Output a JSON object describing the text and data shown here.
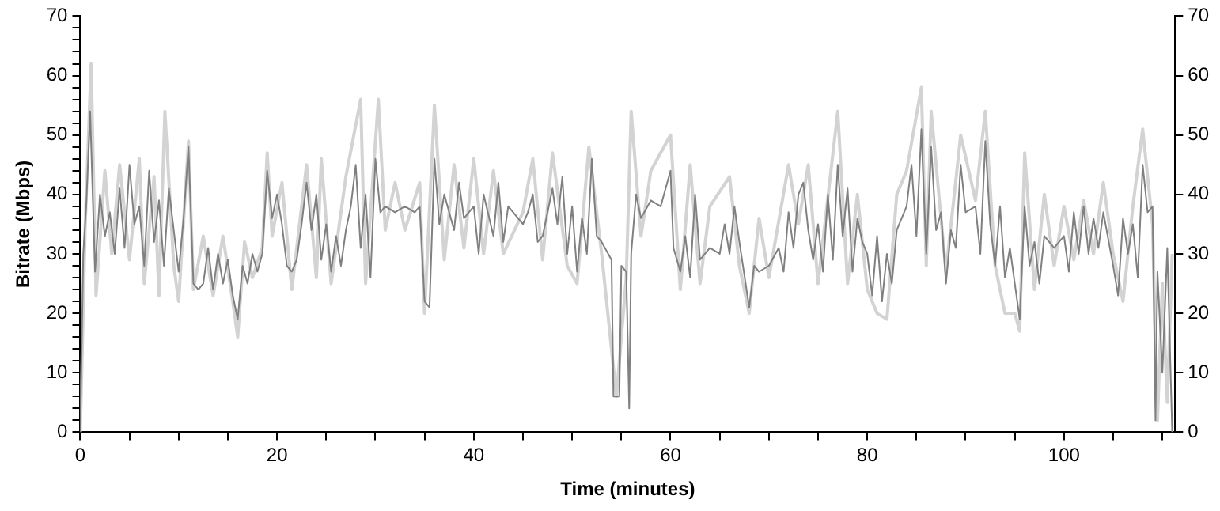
{
  "chart_data": {
    "type": "line",
    "xlabel": "Time (minutes)",
    "ylabel": "Bitrate (Mbps)",
    "xlim": [
      0,
      111.3
    ],
    "xticks": [
      0,
      {
        "value": 5,
        "label": null
      },
      {
        "value": 10,
        "label": null
      },
      {
        "value": 15,
        "label": null
      },
      20,
      {
        "value": 25,
        "label": null
      },
      {
        "value": 30,
        "label": null
      },
      {
        "value": 35,
        "label": null
      },
      40,
      {
        "value": 45,
        "label": null
      },
      {
        "value": 50,
        "label": null
      },
      {
        "value": 55,
        "label": null
      },
      60,
      {
        "value": 65,
        "label": null
      },
      {
        "value": 70,
        "label": null
      },
      {
        "value": 75,
        "label": null
      },
      80,
      {
        "value": 85,
        "label": null
      },
      {
        "value": 90,
        "label": null
      },
      {
        "value": 95,
        "label": null
      },
      100,
      {
        "value": 105,
        "label": null
      },
      {
        "value": 110,
        "label": null
      }
    ],
    "ylim": [
      0,
      70
    ],
    "yticks": [
      0,
      {
        "value": 2,
        "label": null
      },
      {
        "value": 4,
        "label": null
      },
      {
        "value": 6,
        "label": null
      },
      {
        "value": 8,
        "label": null
      },
      10,
      {
        "value": 12,
        "label": null
      },
      {
        "value": 14,
        "label": null
      },
      {
        "value": 16,
        "label": null
      },
      {
        "value": 18,
        "label": null
      },
      20,
      {
        "value": 22,
        "label": null
      },
      {
        "value": 24,
        "label": null
      },
      {
        "value": 26,
        "label": null
      },
      {
        "value": 28,
        "label": null
      },
      30,
      {
        "value": 32,
        "label": null
      },
      {
        "value": 34,
        "label": null
      },
      {
        "value": 36,
        "label": null
      },
      {
        "value": 38,
        "label": null
      },
      40,
      {
        "value": 42,
        "label": null
      },
      {
        "value": 44,
        "label": null
      },
      {
        "value": 46,
        "label": null
      },
      {
        "value": 48,
        "label": null
      },
      50,
      {
        "value": 52,
        "label": null
      },
      {
        "value": 54,
        "label": null
      },
      {
        "value": 56,
        "label": null
      },
      {
        "value": 58,
        "label": null
      },
      60,
      {
        "value": 62,
        "label": null
      },
      {
        "value": 64,
        "label": null
      },
      {
        "value": 66,
        "label": null
      },
      {
        "value": 68,
        "label": null
      },
      70
    ],
    "y2lim": [
      0,
      70
    ],
    "y2ticks": [
      0,
      10,
      20,
      30,
      40,
      50,
      60,
      70
    ],
    "grid": false,
    "legend": false,
    "marker": "none",
    "line_style": "solid",
    "series": [
      {
        "color": "#d3d3d3",
        "x": [
          0,
          0.5,
          1.1,
          1.6,
          2.5,
          3.2,
          4,
          5,
          6,
          6.5,
          7.5,
          8,
          8.6,
          9.5,
          10,
          11,
          11.5,
          12.5,
          13.5,
          14.5,
          15.5,
          16,
          16.7,
          17.5,
          18.5,
          19,
          19.5,
          20.5,
          21.5,
          23,
          24,
          24.5,
          25.5,
          27,
          28.5,
          29,
          30.3,
          31,
          32,
          33,
          34.5,
          35,
          36,
          37,
          38,
          39,
          40,
          41,
          42,
          43,
          45,
          46,
          47,
          48,
          49.5,
          50.5,
          51.7,
          53,
          54.5,
          55.5,
          56,
          57,
          58,
          60,
          61,
          62,
          63,
          64,
          66,
          67,
          68,
          69,
          70,
          72,
          73,
          74,
          75,
          77,
          78,
          79,
          80,
          81,
          82,
          83,
          84,
          85.5,
          86,
          86.5,
          88,
          89.5,
          91,
          92,
          93,
          94,
          95,
          95.5,
          96,
          97,
          98,
          99,
          100,
          101,
          102,
          103,
          104,
          105,
          106,
          107,
          108,
          109,
          109.5,
          110,
          110.5,
          111
        ],
        "values": [
          0,
          35,
          62,
          23,
          44,
          30,
          45,
          29,
          46,
          25,
          43,
          23,
          54,
          28,
          22,
          49,
          24,
          33,
          23,
          33,
          22,
          16,
          32,
          26,
          31,
          47,
          33,
          42,
          24,
          45,
          26,
          46,
          25,
          43,
          56,
          25,
          56,
          34,
          42,
          34,
          42,
          20,
          55,
          29,
          45,
          31,
          46,
          30,
          44,
          30,
          37,
          46,
          29,
          47,
          28,
          25,
          48,
          30,
          6,
          26,
          54,
          33,
          44,
          50,
          24,
          45,
          25,
          38,
          43,
          28,
          20,
          36,
          26,
          45,
          35,
          45,
          25,
          54,
          25,
          40,
          24,
          20,
          19,
          40,
          44,
          58,
          28,
          54,
          27,
          50,
          39,
          54,
          28,
          20,
          20,
          17,
          47,
          24,
          40,
          28,
          38,
          29,
          39,
          30,
          42,
          30,
          22,
          38,
          51,
          35,
          2,
          25,
          5,
          30
        ]
      },
      {
        "color": "#808080",
        "x": [
          0,
          0.3,
          0.6,
          1,
          1.5,
          2,
          2.5,
          3,
          3.5,
          4,
          4.5,
          5,
          5.5,
          6,
          6.5,
          7,
          7.5,
          8,
          8.5,
          9,
          9.5,
          10,
          10.5,
          11,
          11.5,
          12,
          12.5,
          13,
          13.5,
          14,
          14.5,
          15,
          15.5,
          16,
          16.5,
          17,
          17.5,
          18,
          18.5,
          19,
          19.5,
          20,
          20.5,
          21,
          21.5,
          22,
          22.5,
          23,
          23.5,
          24,
          24.5,
          25,
          25.5,
          26,
          26.5,
          27,
          27.5,
          28,
          28.5,
          29,
          29.5,
          30,
          30.5,
          31,
          32,
          33,
          34,
          34.5,
          35,
          35.5,
          36,
          36.5,
          37,
          38,
          38.5,
          39,
          40,
          40.5,
          41,
          42,
          42.5,
          43,
          43.5,
          44,
          45,
          45.5,
          46,
          46.5,
          47,
          48,
          48.5,
          49,
          49.5,
          50,
          50.5,
          51,
          51.5,
          52,
          52.5,
          53,
          54,
          54.2,
          54.8,
          55,
          55.5,
          55.8,
          56,
          56.5,
          57,
          58,
          59,
          60,
          60.3,
          61,
          61.5,
          62,
          62.5,
          63,
          64,
          65,
          65.5,
          66,
          66.5,
          67,
          68,
          68.5,
          69,
          70,
          71,
          71.5,
          72,
          72.5,
          73,
          73.5,
          74,
          74.5,
          75,
          75.5,
          76,
          76.5,
          77,
          77.5,
          78,
          78.5,
          79,
          79.5,
          80,
          80.5,
          81,
          81.5,
          82,
          82.5,
          83,
          84,
          84.5,
          85,
          85.5,
          86,
          86.5,
          87,
          87.5,
          88,
          88.5,
          89,
          89.5,
          90,
          91,
          91.5,
          92,
          92.5,
          93,
          93.5,
          94,
          94.5,
          95,
          95.5,
          96,
          96.5,
          97,
          97.5,
          98,
          99,
          100,
          100.5,
          101,
          101.5,
          102,
          102.5,
          103,
          103.5,
          104,
          105,
          105.5,
          106,
          106.5,
          107,
          107.5,
          108,
          108.5,
          109,
          109.3,
          109.5,
          110,
          110.5,
          111
        ],
        "values": [
          0,
          30,
          38,
          54,
          27,
          40,
          33,
          37,
          30,
          41,
          31,
          45,
          35,
          38,
          28,
          44,
          32,
          39,
          28,
          41,
          34,
          27,
          36,
          48,
          25,
          24,
          25,
          31,
          24,
          30,
          25,
          29,
          23,
          19,
          28,
          25,
          30,
          27,
          30,
          44,
          36,
          40,
          35,
          28,
          27,
          29,
          35,
          42,
          34,
          40,
          29,
          35,
          27,
          33,
          28,
          34,
          38,
          45,
          31,
          40,
          26,
          46,
          37,
          38,
          37,
          38,
          37,
          38,
          22,
          21,
          46,
          35,
          40,
          34,
          42,
          36,
          38,
          30,
          40,
          33,
          42,
          32,
          38,
          37,
          35,
          37,
          40,
          32,
          33,
          41,
          35,
          43,
          30,
          38,
          27,
          36,
          30,
          46,
          33,
          32,
          29,
          6,
          6,
          28,
          27,
          4,
          30,
          40,
          36,
          39,
          38,
          44,
          31,
          27,
          33,
          26,
          40,
          29,
          31,
          30,
          35,
          30,
          38,
          32,
          21,
          28,
          27,
          28,
          31,
          27,
          37,
          31,
          40,
          42,
          34,
          29,
          35,
          27,
          40,
          29,
          45,
          33,
          41,
          27,
          36,
          32,
          30,
          23,
          33,
          22,
          30,
          25,
          34,
          38,
          45,
          33,
          51,
          30,
          48,
          34,
          37,
          25,
          34,
          31,
          45,
          37,
          38,
          30,
          49,
          35,
          28,
          38,
          26,
          31,
          25,
          19,
          38,
          28,
          32,
          25,
          33,
          31,
          33,
          27,
          37,
          30,
          38,
          30,
          36,
          31,
          37,
          28,
          23,
          36,
          30,
          35,
          26,
          45,
          37,
          38,
          2,
          27,
          10,
          31,
          0
        ]
      }
    ]
  }
}
